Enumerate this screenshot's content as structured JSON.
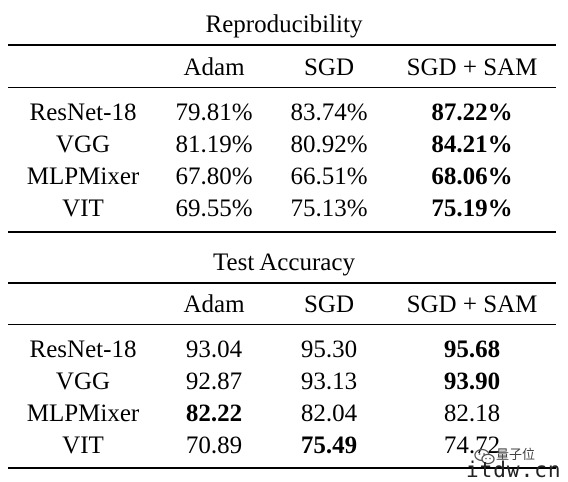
{
  "tables": [
    {
      "title": "Reproducibility",
      "columns": [
        "",
        "Adam",
        "SGD",
        "SGD + SAM"
      ],
      "rows": [
        {
          "model": "ResNet-18",
          "values": [
            "79.81%",
            "83.74%",
            "87.22%"
          ],
          "bold": [
            false,
            false,
            true
          ]
        },
        {
          "model": "VGG",
          "values": [
            "81.19%",
            "80.92%",
            "84.21%"
          ],
          "bold": [
            false,
            false,
            true
          ]
        },
        {
          "model": "MLPMixer",
          "values": [
            "67.80%",
            "66.51%",
            "68.06%"
          ],
          "bold": [
            false,
            false,
            true
          ]
        },
        {
          "model": "VIT",
          "values": [
            "69.55%",
            "75.13%",
            "75.19%"
          ],
          "bold": [
            false,
            false,
            true
          ]
        }
      ]
    },
    {
      "title": "Test Accuracy",
      "columns": [
        "",
        "Adam",
        "SGD",
        "SGD + SAM"
      ],
      "rows": [
        {
          "model": "ResNet-18",
          "values": [
            "93.04",
            "95.30",
            "95.68"
          ],
          "bold": [
            false,
            false,
            true
          ]
        },
        {
          "model": "VGG",
          "values": [
            "92.87",
            "93.13",
            "93.90"
          ],
          "bold": [
            false,
            false,
            true
          ]
        },
        {
          "model": "MLPMixer",
          "values": [
            "82.22",
            "82.04",
            "82.18"
          ],
          "bold": [
            true,
            false,
            false
          ]
        },
        {
          "model": "VIT",
          "values": [
            "70.89",
            "75.49",
            "74.72"
          ],
          "bold": [
            false,
            true,
            false
          ]
        }
      ]
    }
  ],
  "watermark": {
    "name": "量子位",
    "id": "itdw.cn",
    "icon": "wechat-icon"
  }
}
